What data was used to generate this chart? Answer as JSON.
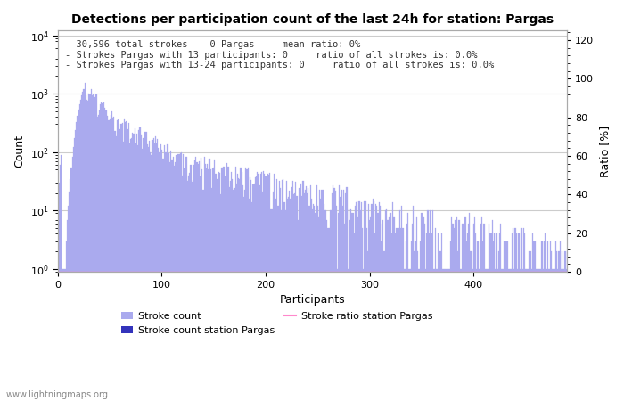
{
  "title": "Detections per participation count of the last 24h for station: Pargas",
  "xlabel": "Participants",
  "ylabel_left": "Count",
  "ylabel_right": "Ratio [%]",
  "annotation_lines": [
    "30,596 total strokes    0 Pargas     mean ratio: 0%",
    "Strokes Pargas with 13 participants: 0     ratio of all strokes is: 0.0%",
    "Strokes Pargas with 13-24 participants: 0     ratio of all strokes is: 0.0%"
  ],
  "bar_color_light": "#aaaaee",
  "bar_color_dark": "#3333bb",
  "ratio_line_color": "#ff88cc",
  "grid_color": "#cccccc",
  "background_color": "#ffffff",
  "watermark": "www.lightningmaps.org",
  "xlim": [
    0,
    490
  ],
  "ylim_log_min": 0.9,
  "ylim_log_max": 12000,
  "ylim_right": [
    0,
    125
  ],
  "right_yticks": [
    0,
    20,
    40,
    60,
    80,
    100,
    120
  ],
  "figsize": [
    7.0,
    4.5
  ],
  "dpi": 100
}
